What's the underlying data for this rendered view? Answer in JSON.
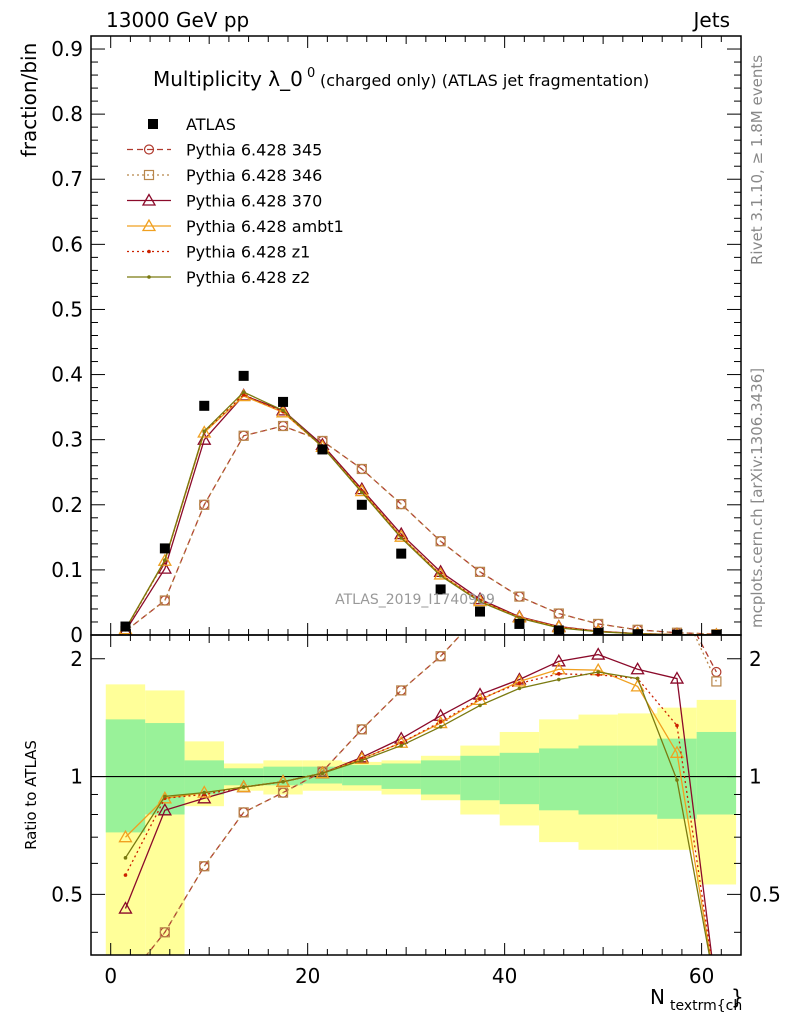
{
  "header": {
    "left": "13000 GeV pp",
    "right": "Jets"
  },
  "side_labels": {
    "rivet": "Rivet 3.1.10, ≥ 1.8M events",
    "mcplots": "mcplots.cern.ch [arXiv:1306.3436]"
  },
  "chart_data": {
    "type": "line",
    "title_main": "Multiplicity λ_0",
    "title_sup": "0",
    "title_rest": " (charged only) (ATLAS jet fragmentation)",
    "ylabel": "fraction/bin",
    "ratio_ylabel": "Ratio to ATLAS",
    "xlabel_main": "N",
    "xlabel_sub": "textrm{ch",
    "xlabel_end": "}",
    "watermark": "ATLAS_2019_I1740909",
    "xlim": [
      -2,
      64
    ],
    "ylim": [
      0,
      0.92
    ],
    "ratio_ylim": [
      0.35,
      2.3
    ],
    "x_ticks": [
      "0",
      "20",
      "40",
      "60"
    ],
    "y_ticks": [
      "0",
      "0.1",
      "0.2",
      "0.3",
      "0.4",
      "0.5",
      "0.6",
      "0.7",
      "0.8",
      "0.9"
    ],
    "ratio_ticks": [
      "0.5",
      "1",
      "2"
    ],
    "x": [
      1.5,
      5.5,
      9.5,
      13.5,
      17.5,
      21.5,
      25.5,
      29.5,
      33.5,
      37.5,
      41.5,
      45.5,
      49.5,
      53.5,
      57.5,
      61.5
    ],
    "data": {
      "name": "ATLAS",
      "values": [
        0.013,
        0.133,
        0.352,
        0.398,
        0.358,
        0.285,
        0.2,
        0.125,
        0.07,
        0.036,
        0.017,
        0.007,
        0.003,
        0.0012,
        0.0004,
        0.0001
      ]
    },
    "series": [
      {
        "name": "Pythia 6.428 345",
        "color": "#b03a2e",
        "dash": "6,4",
        "marker": "circle",
        "values": [
          0.006,
          0.053,
          0.2,
          0.306,
          0.321,
          0.298,
          0.255,
          0.201,
          0.144,
          0.097,
          0.059,
          0.033,
          0.017,
          0.008,
          0.0035,
          0.0013
        ],
        "ratio": [
          0.3,
          0.4,
          0.59,
          0.81,
          0.91,
          1.03,
          1.32,
          1.66,
          2.03,
          2.6,
          3.0,
          3.5,
          4.0,
          4.0,
          4.0,
          1.85
        ]
      },
      {
        "name": "Pythia 6.428 346",
        "color": "#b8864b",
        "dash": "2,3",
        "marker": "square",
        "values": [
          0.006,
          0.053,
          0.2,
          0.306,
          0.321,
          0.298,
          0.255,
          0.201,
          0.144,
          0.097,
          0.059,
          0.033,
          0.017,
          0.008,
          0.0035,
          0.0013
        ],
        "ratio": [
          0.3,
          0.4,
          0.59,
          0.81,
          0.91,
          1.03,
          1.32,
          1.66,
          2.03,
          2.6,
          3.0,
          3.5,
          4.0,
          4.0,
          4.0,
          1.75
        ]
      },
      {
        "name": "Pythia 6.428 370",
        "color": "#8b0a2a",
        "dash": "",
        "marker": "triangle",
        "values": [
          0.006,
          0.102,
          0.3,
          0.368,
          0.345,
          0.292,
          0.224,
          0.155,
          0.097,
          0.055,
          0.028,
          0.013,
          0.006,
          0.0022,
          0.0007,
          0.0001
        ],
        "ratio": [
          0.46,
          0.82,
          0.88,
          0.94,
          0.97,
          1.02,
          1.12,
          1.25,
          1.43,
          1.62,
          1.77,
          1.97,
          2.05,
          1.88,
          1.78,
          0.2
        ]
      },
      {
        "name": "Pythia 6.428 ambt1",
        "color": "#f0a020",
        "dash": "",
        "marker": "triangle",
        "values": [
          0.009,
          0.114,
          0.311,
          0.367,
          0.342,
          0.289,
          0.221,
          0.151,
          0.093,
          0.052,
          0.027,
          0.012,
          0.0055,
          0.002,
          0.0005,
          0.0001
        ],
        "ratio": [
          0.7,
          0.88,
          0.91,
          0.94,
          0.97,
          1.02,
          1.11,
          1.22,
          1.37,
          1.57,
          1.75,
          1.88,
          1.87,
          1.7,
          1.15,
          0.2
        ]
      },
      {
        "name": "Pythia 6.428 z1",
        "color": "#cc2200",
        "dash": "2,3",
        "marker": "dot",
        "values": [
          0.008,
          0.114,
          0.312,
          0.369,
          0.343,
          0.289,
          0.221,
          0.151,
          0.093,
          0.053,
          0.027,
          0.012,
          0.0054,
          0.0021,
          0.0006,
          0.0001
        ],
        "ratio": [
          0.56,
          0.88,
          0.9,
          0.94,
          0.97,
          1.02,
          1.11,
          1.22,
          1.38,
          1.58,
          1.73,
          1.83,
          1.82,
          1.78,
          1.35,
          0.2
        ]
      },
      {
        "name": "Pythia 6.428 z2",
        "color": "#7a7a10",
        "dash": "",
        "marker": "dot",
        "values": [
          0.009,
          0.115,
          0.313,
          0.373,
          0.345,
          0.289,
          0.219,
          0.149,
          0.091,
          0.051,
          0.026,
          0.011,
          0.005,
          0.0019,
          0.0005,
          0.0001
        ],
        "ratio": [
          0.62,
          0.89,
          0.91,
          0.94,
          0.97,
          1.02,
          1.1,
          1.2,
          1.34,
          1.52,
          1.68,
          1.77,
          1.85,
          1.78,
          0.98,
          0.2
        ]
      }
    ],
    "band_edges": [
      -0.5,
      3.5,
      7.5,
      11.5,
      15.5,
      19.5,
      23.5,
      27.5,
      31.5,
      35.5,
      39.5,
      43.5,
      47.5,
      51.5,
      55.5,
      59.5,
      63.5
    ],
    "band_inner": [
      [
        0.72,
        1.4
      ],
      [
        0.8,
        1.37
      ],
      [
        0.9,
        1.1
      ],
      [
        0.95,
        1.05
      ],
      [
        0.95,
        1.06
      ],
      [
        0.96,
        1.06
      ],
      [
        0.95,
        1.07
      ],
      [
        0.93,
        1.08
      ],
      [
        0.9,
        1.1
      ],
      [
        0.87,
        1.13
      ],
      [
        0.85,
        1.15
      ],
      [
        0.82,
        1.18
      ],
      [
        0.8,
        1.2
      ],
      [
        0.8,
        1.2
      ],
      [
        0.78,
        1.25
      ],
      [
        0.8,
        1.3
      ]
    ],
    "band_outer": [
      [
        0.35,
        1.72
      ],
      [
        0.35,
        1.66
      ],
      [
        0.84,
        1.23
      ],
      [
        0.92,
        1.08
      ],
      [
        0.9,
        1.1
      ],
      [
        0.92,
        1.1
      ],
      [
        0.92,
        1.09
      ],
      [
        0.9,
        1.1
      ],
      [
        0.87,
        1.13
      ],
      [
        0.8,
        1.2
      ],
      [
        0.75,
        1.3
      ],
      [
        0.68,
        1.4
      ],
      [
        0.65,
        1.44
      ],
      [
        0.65,
        1.45
      ],
      [
        0.65,
        1.5
      ],
      [
        0.53,
        1.57
      ]
    ]
  }
}
